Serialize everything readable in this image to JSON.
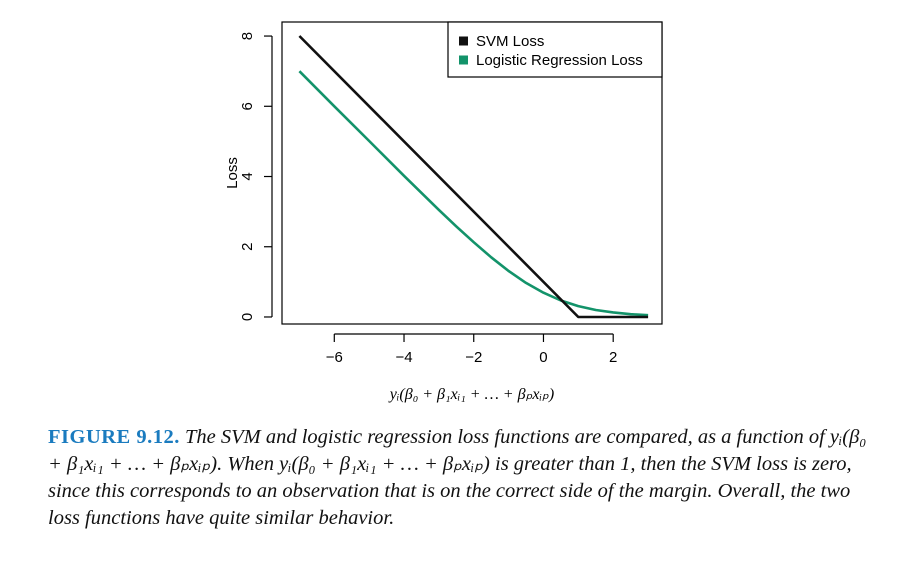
{
  "chart_data": {
    "type": "line",
    "title": "",
    "xlabel": "yᵢ(β₀ + β₁xᵢ₁ + … + βₚxᵢₚ)",
    "ylabel": "Loss",
    "xlim": [
      -7.5,
      3.4
    ],
    "ylim": [
      -0.2,
      8.4
    ],
    "xticks": [
      -6,
      -4,
      -2,
      0,
      2
    ],
    "yticks": [
      0,
      2,
      4,
      6,
      8
    ],
    "x_tick_labels": [
      "−6",
      "−4",
      "−2",
      "0",
      "2"
    ],
    "y_tick_labels": [
      "0",
      "2",
      "4",
      "6",
      "8"
    ],
    "grid": false,
    "legend_position": "top-right",
    "series": [
      {
        "name": "SVM Loss",
        "color": "#111111",
        "x": [
          -7,
          1,
          3
        ],
        "y": [
          8,
          0,
          0
        ]
      },
      {
        "name": "Logistic Regression Loss",
        "color": "#13936a",
        "x": [
          -7,
          -6,
          -5,
          -4,
          -3,
          -2.5,
          -2,
          -1.5,
          -1,
          -0.5,
          0,
          0.5,
          1,
          1.5,
          2,
          2.5,
          3
        ],
        "y": [
          7.0,
          6.0,
          5.01,
          4.02,
          3.05,
          2.58,
          2.13,
          1.7,
          1.31,
          0.97,
          0.69,
          0.47,
          0.31,
          0.2,
          0.13,
          0.08,
          0.05
        ]
      }
    ]
  },
  "caption": {
    "label": "FIGURE 9.12.",
    "text": "The SVM and logistic regression loss functions are compared, as a function of yᵢ(β₀ + β₁xᵢ₁ + … + βₚxᵢₚ). When yᵢ(β₀ + β₁xᵢ₁ + … + βₚxᵢₚ) is greater than 1, then the SVM loss is zero, since this corresponds to an observation that is on the correct side of the margin. Overall, the two loss functions have quite similar behavior."
  }
}
